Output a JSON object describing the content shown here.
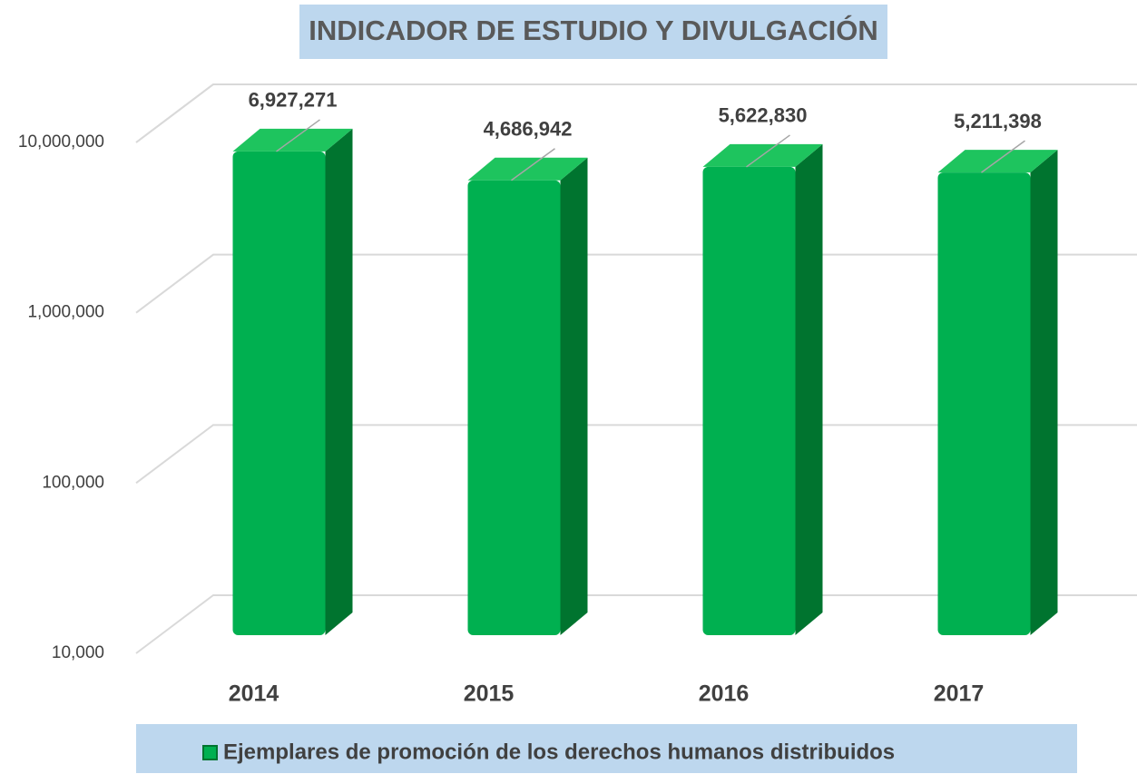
{
  "chart_data": {
    "type": "bar",
    "title": "INDICADOR DE ESTUDIO Y DIVULGACIÓN",
    "categories": [
      "2014",
      "2015",
      "2016",
      "2017"
    ],
    "series": [
      {
        "name": "Ejemplares de promoción de los derechos humanos distribuidos",
        "color": "#00b050",
        "values": [
          6927271,
          4686942,
          5622830,
          5211398
        ],
        "value_labels": [
          "6,927,271",
          "4,686,942",
          "5,622,830",
          "5,211,398"
        ]
      }
    ],
    "ylim": [
      10000,
      10000000
    ],
    "yticks": [
      {
        "value": 10000,
        "label": "10,000"
      },
      {
        "value": 100000,
        "label": "100,000"
      },
      {
        "value": 1000000,
        "label": "1,000,000"
      },
      {
        "value": 10000000,
        "label": "10,000,000"
      }
    ],
    "log_scale": true,
    "grid": true,
    "legend": "bottom"
  }
}
